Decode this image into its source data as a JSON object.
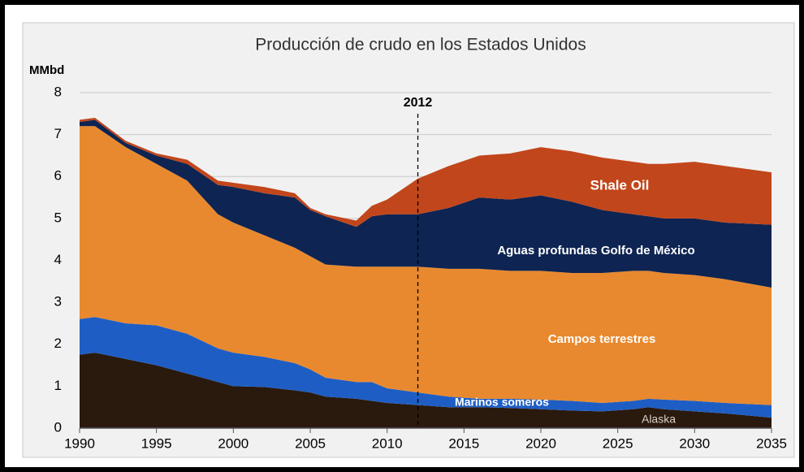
{
  "chart_data": {
    "type": "stacked_area",
    "title": "Producción de crudo en los Estados Unidos",
    "y_unit": "MMbd",
    "x": [
      1990,
      1991,
      1993,
      1995,
      1997,
      1999,
      2000,
      2002,
      2004,
      2005,
      2006,
      2008,
      2009,
      2010,
      2012,
      2014,
      2016,
      2018,
      2020,
      2022,
      2024,
      2026,
      2027,
      2028,
      2030,
      2032,
      2035
    ],
    "series": [
      {
        "name": "Alaska",
        "color": "#2a190d",
        "label_color": "#d9d2c8",
        "values": [
          1.75,
          1.8,
          1.65,
          1.5,
          1.3,
          1.1,
          1.0,
          0.98,
          0.9,
          0.85,
          0.75,
          0.7,
          0.65,
          0.6,
          0.55,
          0.5,
          0.5,
          0.48,
          0.45,
          0.42,
          0.4,
          0.45,
          0.5,
          0.45,
          0.4,
          0.35,
          0.25
        ]
      },
      {
        "name": "Marinos someros",
        "color": "#1e5ec4",
        "label_color": "#ffffff",
        "values": [
          0.85,
          0.85,
          0.85,
          0.95,
          0.95,
          0.8,
          0.8,
          0.72,
          0.65,
          0.55,
          0.45,
          0.4,
          0.45,
          0.35,
          0.3,
          0.25,
          0.2,
          0.22,
          0.23,
          0.23,
          0.2,
          0.2,
          0.2,
          0.23,
          0.25,
          0.25,
          0.3
        ]
      },
      {
        "name": "Campos terrestres",
        "color": "#e8892f",
        "label_color": "#ffffff",
        "values": [
          4.6,
          4.55,
          4.2,
          3.85,
          3.65,
          3.2,
          3.1,
          2.9,
          2.75,
          2.7,
          2.7,
          2.75,
          2.75,
          2.9,
          3.0,
          3.05,
          3.1,
          3.05,
          3.07,
          3.05,
          3.1,
          3.1,
          3.05,
          3.02,
          3.0,
          2.95,
          2.8
        ]
      },
      {
        "name": "Aguas profundas Golfo de México",
        "color": "#0e2452",
        "label_color": "#ffffff",
        "values": [
          0.1,
          0.15,
          0.1,
          0.2,
          0.4,
          0.7,
          0.85,
          1.0,
          1.2,
          1.1,
          1.15,
          0.95,
          1.2,
          1.25,
          1.25,
          1.45,
          1.7,
          1.7,
          1.8,
          1.7,
          1.5,
          1.35,
          1.3,
          1.3,
          1.35,
          1.35,
          1.5
        ]
      },
      {
        "name": "Shale Oil",
        "color": "#c2461b",
        "label_color": "#ffffff",
        "values": [
          0.05,
          0.05,
          0.05,
          0.05,
          0.1,
          0.1,
          0.1,
          0.15,
          0.1,
          0.05,
          0.05,
          0.15,
          0.25,
          0.35,
          0.85,
          1.0,
          1.0,
          1.1,
          1.15,
          1.2,
          1.25,
          1.25,
          1.25,
          1.3,
          1.35,
          1.35,
          1.25
        ]
      }
    ],
    "annotations": [
      {
        "label": "2012",
        "x": 2012
      }
    ],
    "xlim": [
      1990,
      2035
    ],
    "xticks": [
      1990,
      1995,
      2000,
      2005,
      2010,
      2015,
      2020,
      2025,
      2030,
      2035
    ],
    "ylim": [
      0,
      8
    ],
    "yticks": [
      0,
      1,
      2,
      3,
      4,
      5,
      6,
      7,
      8
    ],
    "grid": true
  }
}
